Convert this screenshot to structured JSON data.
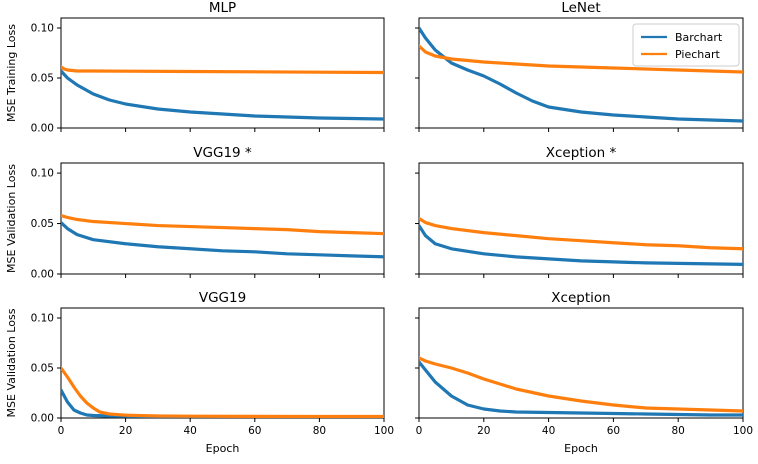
{
  "figure": {
    "legend": [
      {
        "name": "Barchart",
        "color": "#1f77b4"
      },
      {
        "name": "Piechart",
        "color": "#ff7f0e"
      }
    ],
    "row_ylabels": [
      "MSE Training Loss",
      "MSE Validation Loss",
      "MSE Validation Loss"
    ],
    "xlabel": "Epoch",
    "xticks": [
      "0",
      "20",
      "40",
      "60",
      "80",
      "100"
    ],
    "yticks": [
      "0.00",
      "0.05",
      "0.10"
    ]
  },
  "chart_data": [
    {
      "type": "line",
      "title": "MLP",
      "xlabel": "",
      "ylabel": "MSE Training Loss",
      "xlim": [
        0,
        100
      ],
      "ylim": [
        0,
        0.11
      ],
      "grid": false,
      "series": [
        {
          "name": "Barchart",
          "color": "#1f77b4",
          "x": [
            0,
            2,
            5,
            10,
            15,
            20,
            30,
            40,
            50,
            60,
            70,
            80,
            90,
            100
          ],
          "y": [
            0.057,
            0.05,
            0.043,
            0.034,
            0.028,
            0.024,
            0.019,
            0.016,
            0.014,
            0.012,
            0.011,
            0.01,
            0.0095,
            0.009
          ]
        },
        {
          "name": "Piechart",
          "color": "#ff7f0e",
          "x": [
            0,
            1,
            2,
            5,
            10,
            20,
            40,
            60,
            80,
            100
          ],
          "y": [
            0.061,
            0.059,
            0.058,
            0.057,
            0.057,
            0.0568,
            0.0565,
            0.0562,
            0.0558,
            0.0555
          ]
        }
      ]
    },
    {
      "type": "line",
      "title": "LeNet",
      "xlabel": "",
      "ylabel": "",
      "xlim": [
        0,
        100
      ],
      "ylim": [
        0,
        0.11
      ],
      "grid": false,
      "legend": "top-right",
      "series": [
        {
          "name": "Barchart",
          "color": "#1f77b4",
          "x": [
            0,
            2,
            5,
            10,
            15,
            20,
            25,
            30,
            35,
            40,
            50,
            60,
            70,
            80,
            90,
            100
          ],
          "y": [
            0.1,
            0.09,
            0.078,
            0.065,
            0.058,
            0.052,
            0.044,
            0.035,
            0.027,
            0.021,
            0.016,
            0.013,
            0.011,
            0.009,
            0.008,
            0.007
          ]
        },
        {
          "name": "Piechart",
          "color": "#ff7f0e",
          "x": [
            0,
            2,
            5,
            10,
            20,
            30,
            40,
            60,
            80,
            100
          ],
          "y": [
            0.082,
            0.076,
            0.072,
            0.069,
            0.066,
            0.064,
            0.062,
            0.06,
            0.058,
            0.056
          ]
        }
      ]
    },
    {
      "type": "line",
      "title": "VGG19 *",
      "xlabel": "",
      "ylabel": "MSE Validation Loss",
      "xlim": [
        0,
        100
      ],
      "ylim": [
        0,
        0.11
      ],
      "grid": false,
      "series": [
        {
          "name": "Barchart",
          "color": "#1f77b4",
          "x": [
            0,
            2,
            5,
            10,
            20,
            30,
            40,
            50,
            60,
            70,
            80,
            90,
            100
          ],
          "y": [
            0.051,
            0.045,
            0.039,
            0.034,
            0.03,
            0.027,
            0.025,
            0.023,
            0.022,
            0.02,
            0.019,
            0.018,
            0.017
          ]
        },
        {
          "name": "Piechart",
          "color": "#ff7f0e",
          "x": [
            0,
            2,
            5,
            10,
            20,
            30,
            40,
            50,
            60,
            70,
            80,
            90,
            100
          ],
          "y": [
            0.058,
            0.056,
            0.054,
            0.052,
            0.05,
            0.048,
            0.047,
            0.046,
            0.045,
            0.044,
            0.042,
            0.041,
            0.04
          ]
        }
      ]
    },
    {
      "type": "line",
      "title": "Xception *",
      "xlabel": "",
      "ylabel": "",
      "xlim": [
        0,
        100
      ],
      "ylim": [
        0,
        0.11
      ],
      "grid": false,
      "series": [
        {
          "name": "Barchart",
          "color": "#1f77b4",
          "x": [
            0,
            2,
            5,
            10,
            20,
            30,
            40,
            50,
            60,
            70,
            80,
            90,
            100
          ],
          "y": [
            0.048,
            0.038,
            0.03,
            0.025,
            0.02,
            0.017,
            0.015,
            0.013,
            0.012,
            0.011,
            0.0105,
            0.01,
            0.0095
          ]
        },
        {
          "name": "Piechart",
          "color": "#ff7f0e",
          "x": [
            0,
            2,
            5,
            10,
            20,
            30,
            40,
            50,
            60,
            70,
            80,
            90,
            100
          ],
          "y": [
            0.055,
            0.051,
            0.048,
            0.045,
            0.041,
            0.038,
            0.035,
            0.033,
            0.031,
            0.029,
            0.028,
            0.026,
            0.025
          ]
        }
      ]
    },
    {
      "type": "line",
      "title": "VGG19",
      "xlabel": "Epoch",
      "ylabel": "MSE Validation Loss",
      "xlim": [
        0,
        100
      ],
      "ylim": [
        0,
        0.11
      ],
      "grid": false,
      "series": [
        {
          "name": "Barchart",
          "color": "#1f77b4",
          "x": [
            0,
            2,
            4,
            6,
            8,
            10,
            15,
            20,
            30,
            40,
            60,
            80,
            100
          ],
          "y": [
            0.028,
            0.016,
            0.008,
            0.005,
            0.003,
            0.0025,
            0.002,
            0.0018,
            0.0015,
            0.0013,
            0.0012,
            0.0011,
            0.001
          ]
        },
        {
          "name": "Piechart",
          "color": "#ff7f0e",
          "x": [
            0,
            2,
            4,
            6,
            8,
            10,
            12,
            15,
            20,
            30,
            40,
            60,
            80,
            100
          ],
          "y": [
            0.05,
            0.041,
            0.031,
            0.022,
            0.015,
            0.01,
            0.006,
            0.004,
            0.0028,
            0.002,
            0.0018,
            0.0016,
            0.0015,
            0.0015
          ]
        }
      ]
    },
    {
      "type": "line",
      "title": "Xception",
      "xlabel": "Epoch",
      "ylabel": "",
      "xlim": [
        0,
        100
      ],
      "ylim": [
        0,
        0.11
      ],
      "grid": false,
      "series": [
        {
          "name": "Barchart",
          "color": "#1f77b4",
          "x": [
            0,
            2,
            5,
            10,
            15,
            20,
            25,
            30,
            40,
            50,
            60,
            70,
            80,
            90,
            100
          ],
          "y": [
            0.056,
            0.048,
            0.036,
            0.022,
            0.013,
            0.009,
            0.007,
            0.006,
            0.0055,
            0.005,
            0.0045,
            0.004,
            0.0035,
            0.003,
            0.003
          ]
        },
        {
          "name": "Piechart",
          "color": "#ff7f0e",
          "x": [
            0,
            2,
            5,
            10,
            15,
            20,
            25,
            30,
            40,
            50,
            60,
            70,
            80,
            90,
            100
          ],
          "y": [
            0.06,
            0.057,
            0.054,
            0.05,
            0.045,
            0.039,
            0.034,
            0.029,
            0.022,
            0.017,
            0.013,
            0.01,
            0.009,
            0.008,
            0.007
          ]
        }
      ]
    }
  ]
}
